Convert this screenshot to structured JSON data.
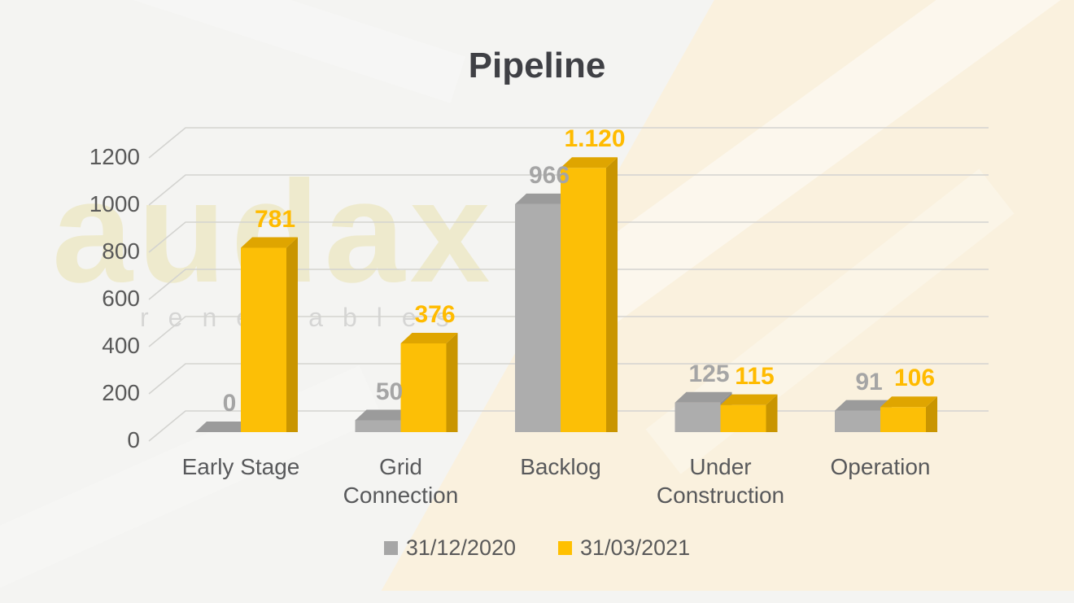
{
  "title": "Pipeline",
  "watermark": {
    "line1": "audax",
    "line2": "renewables"
  },
  "legend": {
    "items": [
      {
        "label": "31/12/2020",
        "color": "#a6a6a6"
      },
      {
        "label": "31/03/2021",
        "color": "#ffc000"
      }
    ]
  },
  "colors": {
    "background_left": "#f4f4f2",
    "background_cream": "#faf1de",
    "gridline": "#d3d3d0",
    "axis_text": "#595959",
    "title_text": "#3f4045",
    "gray_front": "#adadad",
    "gray_top": "#9b9b9b",
    "gray_side": "#8f8f8f",
    "gray_label": "#a5a5a5",
    "yellow_front": "#fcbf06",
    "yellow_top": "#dfa500",
    "yellow_side": "#c99500",
    "yellow_label": "#ffbb00"
  },
  "chart_data": {
    "type": "bar",
    "style": "3d-clustered-column",
    "title": "Pipeline",
    "categories": [
      "Early Stage",
      "Grid Connection",
      "Backlog",
      "Under Construction",
      "Operation"
    ],
    "category_lines": [
      [
        "Early Stage"
      ],
      [
        "Grid",
        "Connection"
      ],
      [
        "Backlog"
      ],
      [
        "Under",
        "Construction"
      ],
      [
        "Operation"
      ]
    ],
    "series": [
      {
        "name": "31/12/2020",
        "color": "#a6a6a6",
        "values": [
          0,
          50,
          966,
          125,
          91
        ],
        "labels": [
          "0",
          "50",
          "966",
          "125",
          "91"
        ]
      },
      {
        "name": "31/03/2021",
        "color": "#ffc000",
        "values": [
          781,
          376,
          1120,
          115,
          106
        ],
        "labels": [
          "781",
          "376",
          "1.120",
          "115",
          "106"
        ]
      }
    ],
    "yticks": [
      0,
      200,
      400,
      600,
      800,
      1000,
      1200
    ],
    "ytick_labels": [
      "0",
      "200",
      "400",
      "600",
      "800",
      "1000",
      "1200"
    ],
    "ylim": [
      0,
      1200
    ],
    "grid": true,
    "legend_position": "bottom"
  }
}
